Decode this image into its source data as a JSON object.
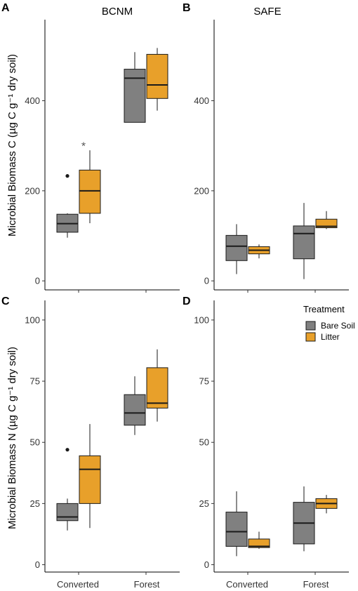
{
  "colors": {
    "bare_soil": "#808080",
    "litter": "#E8A02A",
    "line": "#1a1a1a"
  },
  "legend": {
    "title": "Treatment",
    "entries": [
      {
        "label": "Bare Soil",
        "color_key": "bare_soil"
      },
      {
        "label": "Litter",
        "color_key": "litter"
      }
    ]
  },
  "xlabels": [
    "Converted",
    "Forest"
  ],
  "ylabels": {
    "top": "Microbial Biomass C (µg C g⁻¹ dry soil)",
    "bottom": "Microbial Biomass N (µg C g⁻¹ dry soil)"
  },
  "chart_data": [
    {
      "id": "A",
      "panel_label": "A",
      "title": "BCNM",
      "type": "box",
      "ylim": [
        -20,
        580
      ],
      "yticks": [
        0,
        200,
        400
      ],
      "categories": [
        "Converted",
        "Forest"
      ],
      "series": [
        {
          "name": "Bare Soil",
          "boxes": [
            {
              "whisker_low": 96,
              "q1": 108,
              "median": 127,
              "q3": 148,
              "whisker_high": 150,
              "outliers": [
                233
              ]
            },
            {
              "whisker_low": 352,
              "q1": 352,
              "median": 450,
              "q3": 470,
              "whisker_high": 508,
              "outliers": []
            }
          ]
        },
        {
          "name": "Litter",
          "boxes": [
            {
              "whisker_low": 128,
              "q1": 150,
              "median": 200,
              "q3": 246,
              "whisker_high": 290,
              "outliers": []
            },
            {
              "whisker_low": 378,
              "q1": 405,
              "median": 435,
              "q3": 503,
              "whisker_high": 517,
              "outliers": []
            }
          ]
        }
      ],
      "annotations": [
        {
          "text": "*",
          "x": "Converted",
          "y": 305
        }
      ]
    },
    {
      "id": "B",
      "panel_label": "B",
      "title": "SAFE",
      "type": "box",
      "ylim": [
        -20,
        580
      ],
      "yticks": [
        0,
        200,
        400
      ],
      "categories": [
        "Converted",
        "Forest"
      ],
      "series": [
        {
          "name": "Bare Soil",
          "boxes": [
            {
              "whisker_low": 15,
              "q1": 45,
              "median": 77,
              "q3": 101,
              "whisker_high": 126,
              "outliers": []
            },
            {
              "whisker_low": 4,
              "q1": 49,
              "median": 105,
              "q3": 122,
              "whisker_high": 173,
              "outliers": []
            }
          ]
        },
        {
          "name": "Litter",
          "boxes": [
            {
              "whisker_low": 50,
              "q1": 60,
              "median": 68,
              "q3": 76,
              "whisker_high": 81,
              "outliers": []
            },
            {
              "whisker_low": 115,
              "q1": 118,
              "median": 121,
              "q3": 137,
              "whisker_high": 155,
              "outliers": []
            }
          ]
        }
      ],
      "annotations": []
    },
    {
      "id": "C",
      "panel_label": "C",
      "title": "",
      "type": "box",
      "ylim": [
        -3,
        108
      ],
      "yticks": [
        0,
        25,
        50,
        75,
        100
      ],
      "categories": [
        "Converted",
        "Forest"
      ],
      "series": [
        {
          "name": "Bare Soil",
          "boxes": [
            {
              "whisker_low": 14,
              "q1": 18,
              "median": 19.5,
              "q3": 25,
              "whisker_high": 27,
              "outliers": [
                47
              ]
            },
            {
              "whisker_low": 53,
              "q1": 57,
              "median": 62,
              "q3": 69.5,
              "whisker_high": 77,
              "outliers": []
            }
          ]
        },
        {
          "name": "Litter",
          "boxes": [
            {
              "whisker_low": 15,
              "q1": 25,
              "median": 39,
              "q3": 44.5,
              "whisker_high": 57.5,
              "outliers": []
            },
            {
              "whisker_low": 58.5,
              "q1": 64,
              "median": 66,
              "q3": 80.5,
              "whisker_high": 88,
              "outliers": []
            }
          ]
        }
      ],
      "annotations": []
    },
    {
      "id": "D",
      "panel_label": "D",
      "title": "",
      "type": "box",
      "ylim": [
        -3,
        108
      ],
      "yticks": [
        0,
        25,
        50,
        75,
        100
      ],
      "categories": [
        "Converted",
        "Forest"
      ],
      "series": [
        {
          "name": "Bare Soil",
          "boxes": [
            {
              "whisker_low": 3.5,
              "q1": 7.5,
              "median": 13.5,
              "q3": 21.5,
              "whisker_high": 30,
              "outliers": []
            },
            {
              "whisker_low": 5.5,
              "q1": 8.5,
              "median": 17,
              "q3": 25.5,
              "whisker_high": 32,
              "outliers": []
            }
          ]
        },
        {
          "name": "Litter",
          "boxes": [
            {
              "whisker_low": 6.5,
              "q1": 7,
              "median": 7.5,
              "q3": 10.5,
              "whisker_high": 13.5,
              "outliers": []
            },
            {
              "whisker_low": 21,
              "q1": 23,
              "median": 25,
              "q3": 27,
              "whisker_high": 28.5,
              "outliers": []
            }
          ]
        }
      ],
      "annotations": []
    }
  ]
}
